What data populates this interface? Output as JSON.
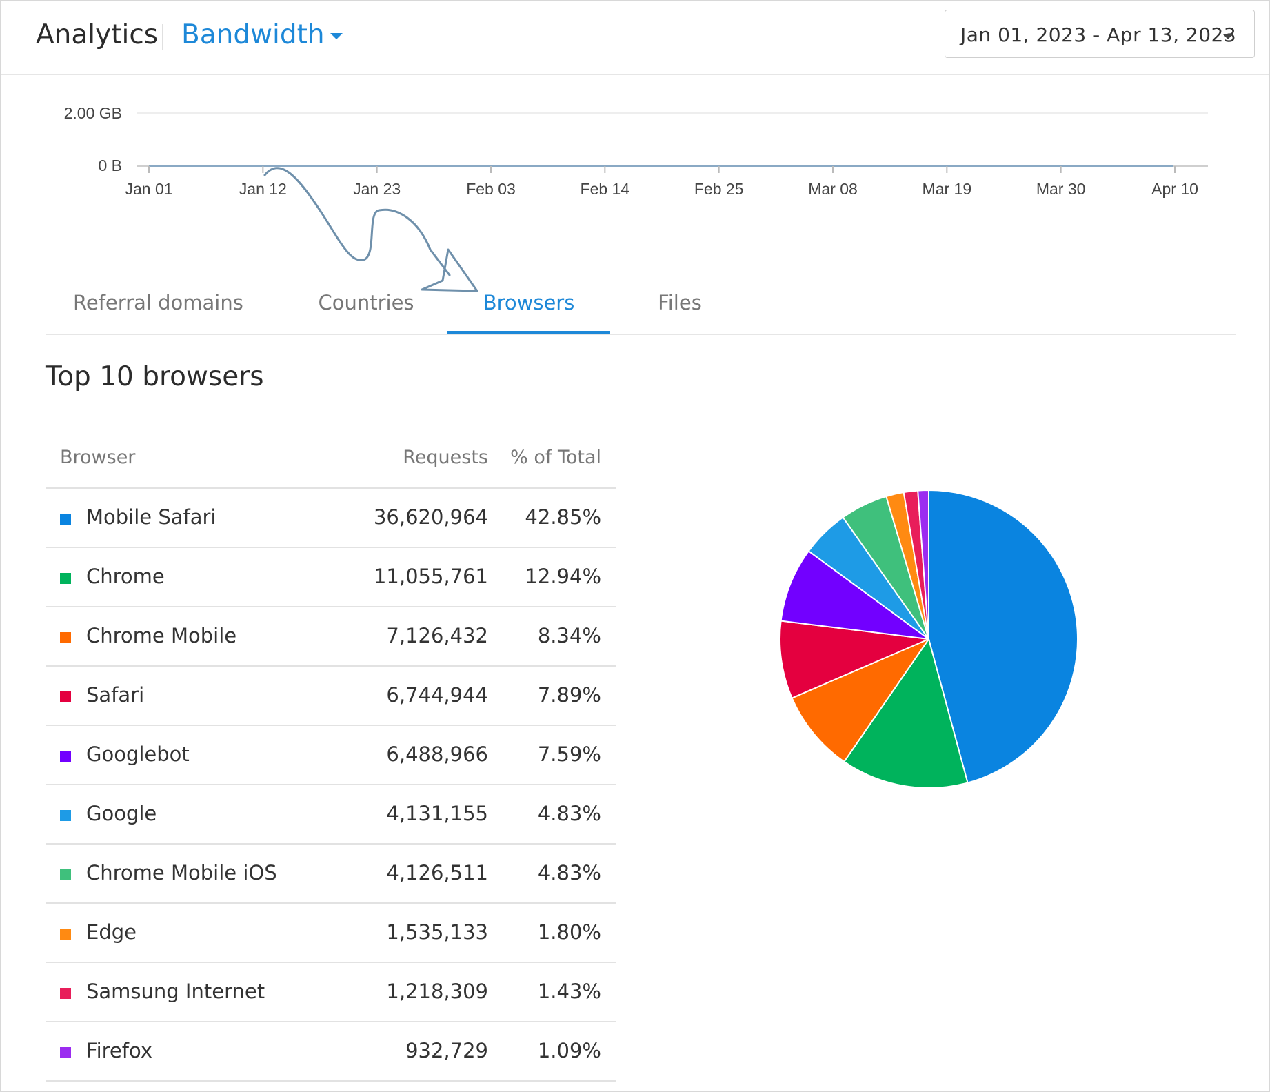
{
  "header": {
    "app_title": "Analytics",
    "metric_selected": "Bandwidth",
    "date_range": "Jan 01, 2023 - Apr 13, 2023"
  },
  "bandwidth_chart": {
    "y_ticks": [
      "2.00 GB",
      "0 B"
    ],
    "x_ticks": [
      "Jan 01",
      "Jan 12",
      "Jan 23",
      "Feb 03",
      "Feb 14",
      "Feb 25",
      "Mar 08",
      "Mar 19",
      "Mar 30",
      "Apr 10"
    ]
  },
  "tabs": [
    {
      "label": "Referral domains",
      "active": false
    },
    {
      "label": "Countries",
      "active": false
    },
    {
      "label": "Browsers",
      "active": true
    },
    {
      "label": "Files",
      "active": false
    }
  ],
  "section_title": "Top 10 browsers",
  "table": {
    "headers": {
      "browser": "Browser",
      "requests": "Requests",
      "pct": "% of Total"
    },
    "rows": [
      {
        "name": "Mobile Safari",
        "requests": "36,620,964",
        "pct": "42.85%",
        "color": "#0a84e0"
      },
      {
        "name": "Chrome",
        "requests": "11,055,761",
        "pct": "12.94%",
        "color": "#00b35c"
      },
      {
        "name": "Chrome Mobile",
        "requests": "7,126,432",
        "pct": "8.34%",
        "color": "#ff6a00"
      },
      {
        "name": "Safari",
        "requests": "6,744,944",
        "pct": "7.89%",
        "color": "#e4003f"
      },
      {
        "name": "Googlebot",
        "requests": "6,488,966",
        "pct": "7.59%",
        "color": "#7200ff"
      },
      {
        "name": "Google",
        "requests": "4,131,155",
        "pct": "4.83%",
        "color": "#1e9be6"
      },
      {
        "name": "Chrome Mobile iOS",
        "requests": "4,126,511",
        "pct": "4.83%",
        "color": "#3fc07c"
      },
      {
        "name": "Edge",
        "requests": "1,535,133",
        "pct": "1.80%",
        "color": "#ff8a12"
      },
      {
        "name": "Samsung Internet",
        "requests": "1,218,309",
        "pct": "1.43%",
        "color": "#e81e5a"
      },
      {
        "name": "Firefox",
        "requests": "932,729",
        "pct": "1.09%",
        "color": "#9b2cf0"
      }
    ]
  },
  "chart_data": {
    "type": "pie",
    "categories": [
      "Mobile Safari",
      "Chrome",
      "Chrome Mobile",
      "Safari",
      "Googlebot",
      "Google",
      "Chrome Mobile iOS",
      "Edge",
      "Samsung Internet",
      "Firefox"
    ],
    "values": [
      36620964,
      11055761,
      7126432,
      6744944,
      6488966,
      4131155,
      4126511,
      1535133,
      1218309,
      932729
    ],
    "colors": [
      "#0a84e0",
      "#00b35c",
      "#ff6a00",
      "#e4003f",
      "#7200ff",
      "#1e9be6",
      "#3fc07c",
      "#ff8a12",
      "#e81e5a",
      "#9b2cf0"
    ],
    "start": "12 o'clock",
    "direction": "clockwise"
  }
}
